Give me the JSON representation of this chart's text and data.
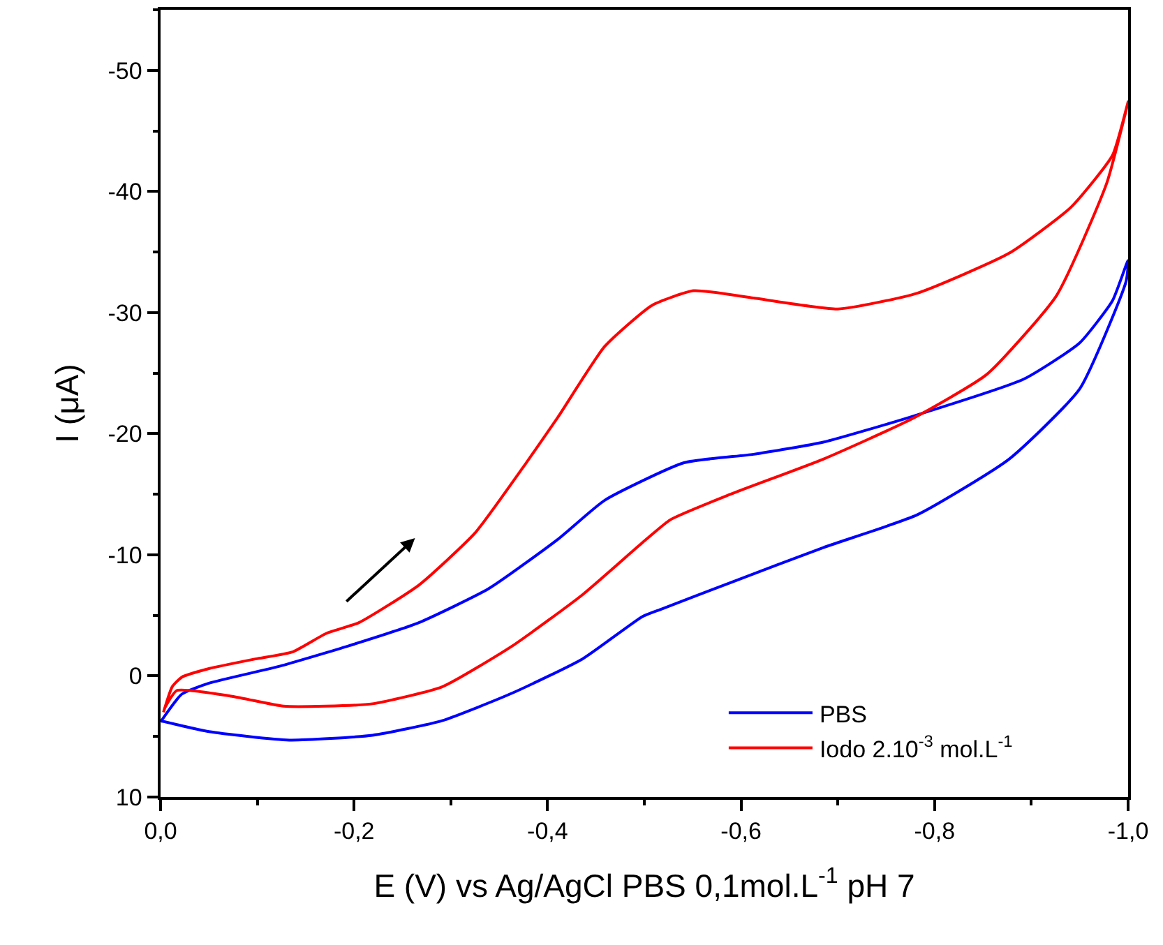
{
  "chart_data": {
    "type": "line",
    "xlabel": "E (V) vs Ag/AgCl PBS 0,1mol.L$^{-1}$ pH 7",
    "ylabel": "I (μA)",
    "xlim": [
      0,
      -1.0
    ],
    "ylim": [
      10,
      -55
    ],
    "xticks": [
      {
        "value": 0,
        "label": "0,0"
      },
      {
        "value": -0.2,
        "label": "-0,2"
      },
      {
        "value": -0.4,
        "label": "-0,4"
      },
      {
        "value": -0.6,
        "label": "-0,6"
      },
      {
        "value": -0.8,
        "label": "-0,8"
      },
      {
        "value": -1.0,
        "label": "-1,0"
      }
    ],
    "yticks": [
      10,
      0,
      -10,
      -20,
      -30,
      -40,
      -50
    ],
    "legend": "bottom right",
    "marker": "none",
    "line_style": "solid",
    "series": [
      {
        "name": "PBS",
        "color": "#0000ff",
        "x": [
          0,
          -0.022,
          -0.05,
          -0.123,
          -0.195,
          -0.267,
          -0.339,
          -0.411,
          -0.459,
          -0.541,
          -0.613,
          -0.685,
          -0.776,
          -0.892,
          -0.95,
          -0.984,
          -1.0,
          -0.998,
          -0.95,
          -0.877,
          -0.782,
          -0.685,
          -0.589,
          -0.517,
          -0.498,
          -0.436,
          -0.364,
          -0.291,
          -0.219,
          -0.133,
          -0.05,
          0
        ],
        "values": [
          3.8,
          1.5,
          0.6,
          -0.8,
          -2.5,
          -4.4,
          -7.2,
          -11.3,
          -14.5,
          -17.6,
          -18.3,
          -19.3,
          -21.4,
          -24.5,
          -27.5,
          -31,
          -34.3,
          -32.6,
          -23.7,
          -17.9,
          -13.3,
          -10.6,
          -7.7,
          -5.5,
          -4.9,
          -1.4,
          1.4,
          3.7,
          4.9,
          5.3,
          4.6,
          3.7
        ]
      },
      {
        "name": "Iodo 2.10$^{-3}$ mol.L$^{-1}$",
        "color": "#ff0000",
        "x": [
          -0.003,
          -0.012,
          -0.022,
          -0.05,
          -0.098,
          -0.137,
          -0.171,
          -0.205,
          -0.267,
          -0.325,
          -0.378,
          -0.411,
          -0.459,
          -0.508,
          -0.551,
          -0.613,
          -0.7,
          -0.782,
          -0.877,
          -0.941,
          -0.984,
          -1.0,
          -0.978,
          -0.926,
          -0.854,
          -0.776,
          -0.685,
          -0.589,
          -0.527,
          -0.498,
          -0.436,
          -0.364,
          -0.291,
          -0.219,
          -0.171,
          -0.127,
          -0.075,
          -0.017,
          -0.004
        ],
        "values": [
          3.0,
          0.9,
          0.1,
          -0.6,
          -1.4,
          -2.0,
          -3.5,
          -4.4,
          -7.5,
          -11.8,
          -17.6,
          -21.4,
          -27.2,
          -30.6,
          -31.8,
          -31.2,
          -30.3,
          -31.6,
          -34.9,
          -38.7,
          -43,
          -47.4,
          -40.7,
          -31.4,
          -24.9,
          -21.2,
          -17.9,
          -15,
          -12.9,
          -11,
          -6.7,
          -2.5,
          0.9,
          2.3,
          2.5,
          2.5,
          1.7,
          1.2,
          2.7
        ]
      }
    ]
  }
}
